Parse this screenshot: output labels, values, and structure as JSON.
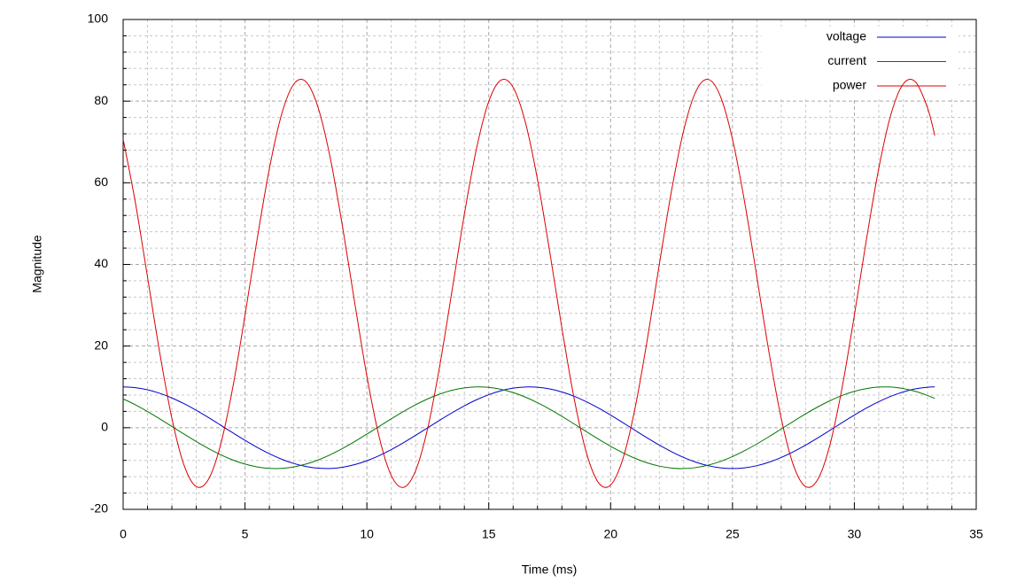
{
  "chart_data": {
    "type": "line",
    "x_label": "Time (ms)",
    "y_label": "Magnitude",
    "xlim": [
      0,
      35
    ],
    "xticks": [
      0,
      5,
      10,
      15,
      20,
      25,
      30,
      35
    ],
    "ylim": [
      -20,
      100
    ],
    "yticks": [
      -20,
      0,
      20,
      40,
      60,
      80,
      100
    ],
    "grid": true,
    "legend": "upper right",
    "x": [
      0,
      0.5,
      1,
      1.5,
      2,
      2.5,
      3,
      3.5,
      4,
      4.5,
      5,
      5.5,
      6,
      6.5,
      7,
      7.5,
      8,
      8.5,
      9,
      9.5,
      10,
      10.5,
      11,
      11.5,
      12,
      12.5,
      13,
      13.5,
      14,
      14.5,
      15,
      15.5,
      16,
      16.5,
      17,
      17.5,
      18,
      18.5,
      19,
      19.5,
      20,
      20.5,
      21,
      21.5,
      22,
      22.5,
      23,
      23.5,
      24,
      24.5,
      25,
      25.5,
      26,
      26.5,
      27,
      27.5,
      28,
      28.5,
      29,
      29.5,
      30,
      30.5,
      31,
      31.5,
      32,
      32.5,
      33,
      33.3
    ],
    "series": [
      {
        "name": "voltage",
        "color": "#0000cc",
        "values": [
          10,
          9.82,
          9.3,
          8.44,
          7.29,
          5.88,
          4.26,
          2.49,
          0.63,
          -1.25,
          -3.09,
          -4.82,
          -6.37,
          -7.71,
          -8.76,
          -9.51,
          -9.92,
          -9.98,
          -9.69,
          -9.05,
          -8.09,
          -6.85,
          -5.36,
          -3.68,
          -1.87,
          0,
          1.87,
          3.68,
          5.36,
          6.85,
          8.09,
          9.05,
          9.69,
          9.98,
          9.92,
          9.51,
          8.76,
          7.71,
          6.37,
          4.82,
          3.09,
          1.25,
          -0.63,
          -2.49,
          -4.26,
          -5.88,
          -7.29,
          -8.44,
          -9.3,
          -9.82,
          -10,
          -9.82,
          -9.3,
          -8.44,
          -7.29,
          -5.88,
          -4.26,
          -2.49,
          -0.63,
          1.25,
          3.09,
          4.82,
          6.37,
          7.71,
          8.76,
          9.51,
          9.92,
          10
        ]
      },
      {
        "name": "current",
        "color": "#007700",
        "values": [
          7.07,
          5.62,
          3.97,
          2.18,
          0.31,
          -1.56,
          -3.39,
          -5.09,
          -6.61,
          -7.9,
          -8.91,
          -9.6,
          -9.96,
          -9.96,
          -9.6,
          -8.91,
          -7.9,
          -6.61,
          -5.09,
          -3.39,
          -1.56,
          0.31,
          2.18,
          3.97,
          5.62,
          7.07,
          8.27,
          9.18,
          9.76,
          10,
          9.88,
          9.41,
          8.61,
          7.5,
          6.13,
          4.54,
          2.79,
          0.94,
          -0.94,
          -2.79,
          -4.54,
          -6.13,
          -7.5,
          -8.61,
          -9.41,
          -9.88,
          -10,
          -9.76,
          -9.18,
          -8.27,
          -7.07,
          -5.62,
          -3.97,
          -2.18,
          -0.31,
          1.56,
          3.39,
          5.09,
          6.61,
          7.9,
          8.91,
          9.6,
          9.96,
          9.96,
          9.6,
          8.91,
          7.9,
          7.16
        ]
      },
      {
        "name": "power",
        "color": "#dd0000",
        "values": [
          70.71,
          55.22,
          36.93,
          18.43,
          2.3,
          -9.19,
          -14.42,
          -12.66,
          -4.15,
          9.91,
          27.54,
          46.27,
          63.47,
          76.72,
          84.16,
          84.75,
          78.4,
          66.01,
          49.31,
          30.66,
          12.66,
          -2.15,
          -11.69,
          -14.62,
          -10.53,
          0,
          15.5,
          33.79,
          52.3,
          68.43,
          79.91,
          85.14,
          83.38,
          74.87,
          60.81,
          43.18,
          24.45,
          7.26,
          -5.99,
          -13.44,
          -14.03,
          -7.68,
          4.71,
          21.41,
          40.07,
          58.06,
          72.87,
          82.41,
          85.34,
          81.25,
          70.71,
          55.22,
          36.93,
          18.43,
          2.3,
          -9.19,
          -14.42,
          -12.66,
          -4.15,
          9.91,
          27.54,
          46.27,
          63.47,
          76.72,
          84.16,
          84.75,
          78.4,
          71.57
        ]
      }
    ]
  }
}
